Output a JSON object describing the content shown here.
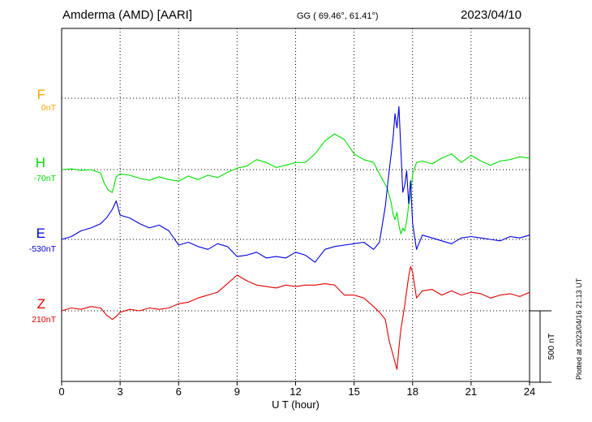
{
  "header": {
    "title": "Amderma (AMD)  [AARI]",
    "coords": "GG ( 69.46°,  61.41°)",
    "date": "2023/04/10",
    "plotted": "Plotted at 2023/04/16 21:13 UT"
  },
  "chart_data": {
    "type": "line",
    "xlabel": "U T (hour)",
    "xlim": [
      0,
      24
    ],
    "xticks": [
      "0",
      "3",
      "6",
      "9",
      "12",
      "15",
      "18",
      "21",
      "24"
    ],
    "grid": true,
    "scale_bar": "500 nT",
    "colors": {
      "F": "#ffa500",
      "H": "#00e000",
      "E": "#0000dd",
      "Z": "#e00000"
    },
    "series": [
      {
        "name": "F",
        "baseline_label": "0nT",
        "x": [],
        "y": []
      },
      {
        "name": "H",
        "baseline_label": "-70nT",
        "x": [
          0,
          0.5,
          1.0,
          1.5,
          2.0,
          2.2,
          2.4,
          2.6,
          2.8,
          3.0,
          3.5,
          4.0,
          4.5,
          5.0,
          5.5,
          6.0,
          6.5,
          7.0,
          7.5,
          8.0,
          8.5,
          9.0,
          9.5,
          10.0,
          10.5,
          11.0,
          11.5,
          12.0,
          12.5,
          13.0,
          13.5,
          14.0,
          14.5,
          15.0,
          15.5,
          16.0,
          16.3,
          16.5,
          16.7,
          16.9,
          17.0,
          17.1,
          17.2,
          17.3,
          17.4,
          17.5,
          17.6,
          17.7,
          17.8,
          17.9,
          18.0,
          18.2,
          18.5,
          19.0,
          19.5,
          20.0,
          20.5,
          21.0,
          21.5,
          22.0,
          22.5,
          23.0,
          23.5,
          24.0
        ],
        "y": [
          -70,
          -65,
          -75,
          -70,
          -95,
          -170,
          -215,
          -230,
          -120,
          -100,
          -110,
          -130,
          -145,
          -120,
          -140,
          -150,
          -115,
          -140,
          -110,
          -125,
          -90,
          -60,
          -45,
          0,
          -20,
          -55,
          -40,
          -20,
          -20,
          40,
          130,
          180,
          140,
          40,
          0,
          -20,
          -100,
          -150,
          -200,
          -300,
          -380,
          -420,
          -370,
          -460,
          -520,
          -480,
          -500,
          -430,
          -320,
          -250,
          -100,
          -20,
          -10,
          -30,
          10,
          40,
          -20,
          30,
          -10,
          -40,
          -10,
          0,
          20,
          10
        ]
      },
      {
        "name": "E",
        "baseline_label": "-530nT",
        "x": [
          0,
          0.5,
          1.0,
          1.5,
          2.0,
          2.3,
          2.6,
          2.8,
          3.0,
          3.5,
          4.0,
          4.5,
          5.0,
          5.5,
          6.0,
          6.5,
          7.0,
          7.5,
          8.0,
          8.5,
          9.0,
          9.5,
          10.0,
          10.5,
          11.0,
          11.5,
          12.0,
          12.5,
          13.0,
          13.5,
          14.0,
          14.5,
          15.0,
          15.5,
          16.0,
          16.3,
          16.6,
          16.8,
          17.0,
          17.1,
          17.2,
          17.3,
          17.4,
          17.5,
          17.6,
          17.7,
          17.8,
          17.9,
          18.0,
          18.2,
          18.5,
          19.0,
          19.5,
          20.0,
          20.5,
          21.0,
          21.5,
          22.0,
          22.5,
          23.0,
          23.5,
          24.0
        ],
        "y": [
          -530,
          -510,
          -470,
          -450,
          -420,
          -380,
          -320,
          -260,
          -360,
          -380,
          -420,
          -450,
          -430,
          -470,
          -570,
          -550,
          -580,
          -600,
          -560,
          -580,
          -650,
          -640,
          -620,
          -660,
          -650,
          -660,
          -620,
          -640,
          -690,
          -600,
          -580,
          -570,
          -560,
          -550,
          -600,
          -550,
          -300,
          -50,
          180,
          350,
          250,
          400,
          100,
          -200,
          -150,
          -50,
          -280,
          -120,
          -420,
          -600,
          -500,
          -520,
          -540,
          -560,
          -520,
          -510,
          -520,
          -530,
          -540,
          -510,
          -520,
          -500
        ]
      },
      {
        "name": "Z",
        "baseline_label": "210nT",
        "x": [
          0,
          0.5,
          1.0,
          1.5,
          2.0,
          2.3,
          2.6,
          2.8,
          3.0,
          3.5,
          4.0,
          4.5,
          5.0,
          5.5,
          6.0,
          6.5,
          7.0,
          7.5,
          8.0,
          8.5,
          9.0,
          9.5,
          10.0,
          10.5,
          11.0,
          11.5,
          12.0,
          12.5,
          13.0,
          13.5,
          14.0,
          14.5,
          15.0,
          15.5,
          16.0,
          16.3,
          16.6,
          16.8,
          17.0,
          17.1,
          17.2,
          17.3,
          17.4,
          17.6,
          17.8,
          17.9,
          18.0,
          18.2,
          18.5,
          19.0,
          19.5,
          20.0,
          20.5,
          21.0,
          21.5,
          22.0,
          22.5,
          23.0,
          23.5,
          24.0
        ],
        "y": [
          210,
          230,
          220,
          240,
          230,
          180,
          150,
          170,
          200,
          220,
          210,
          230,
          220,
          230,
          260,
          270,
          300,
          320,
          340,
          400,
          460,
          420,
          390,
          380,
          370,
          390,
          380,
          390,
          390,
          400,
          390,
          320,
          320,
          300,
          240,
          200,
          150,
          0,
          -100,
          -150,
          -200,
          -50,
          80,
          250,
          450,
          520,
          480,
          300,
          350,
          360,
          320,
          350,
          320,
          340,
          330,
          300,
          320,
          330,
          310,
          340
        ]
      }
    ]
  }
}
